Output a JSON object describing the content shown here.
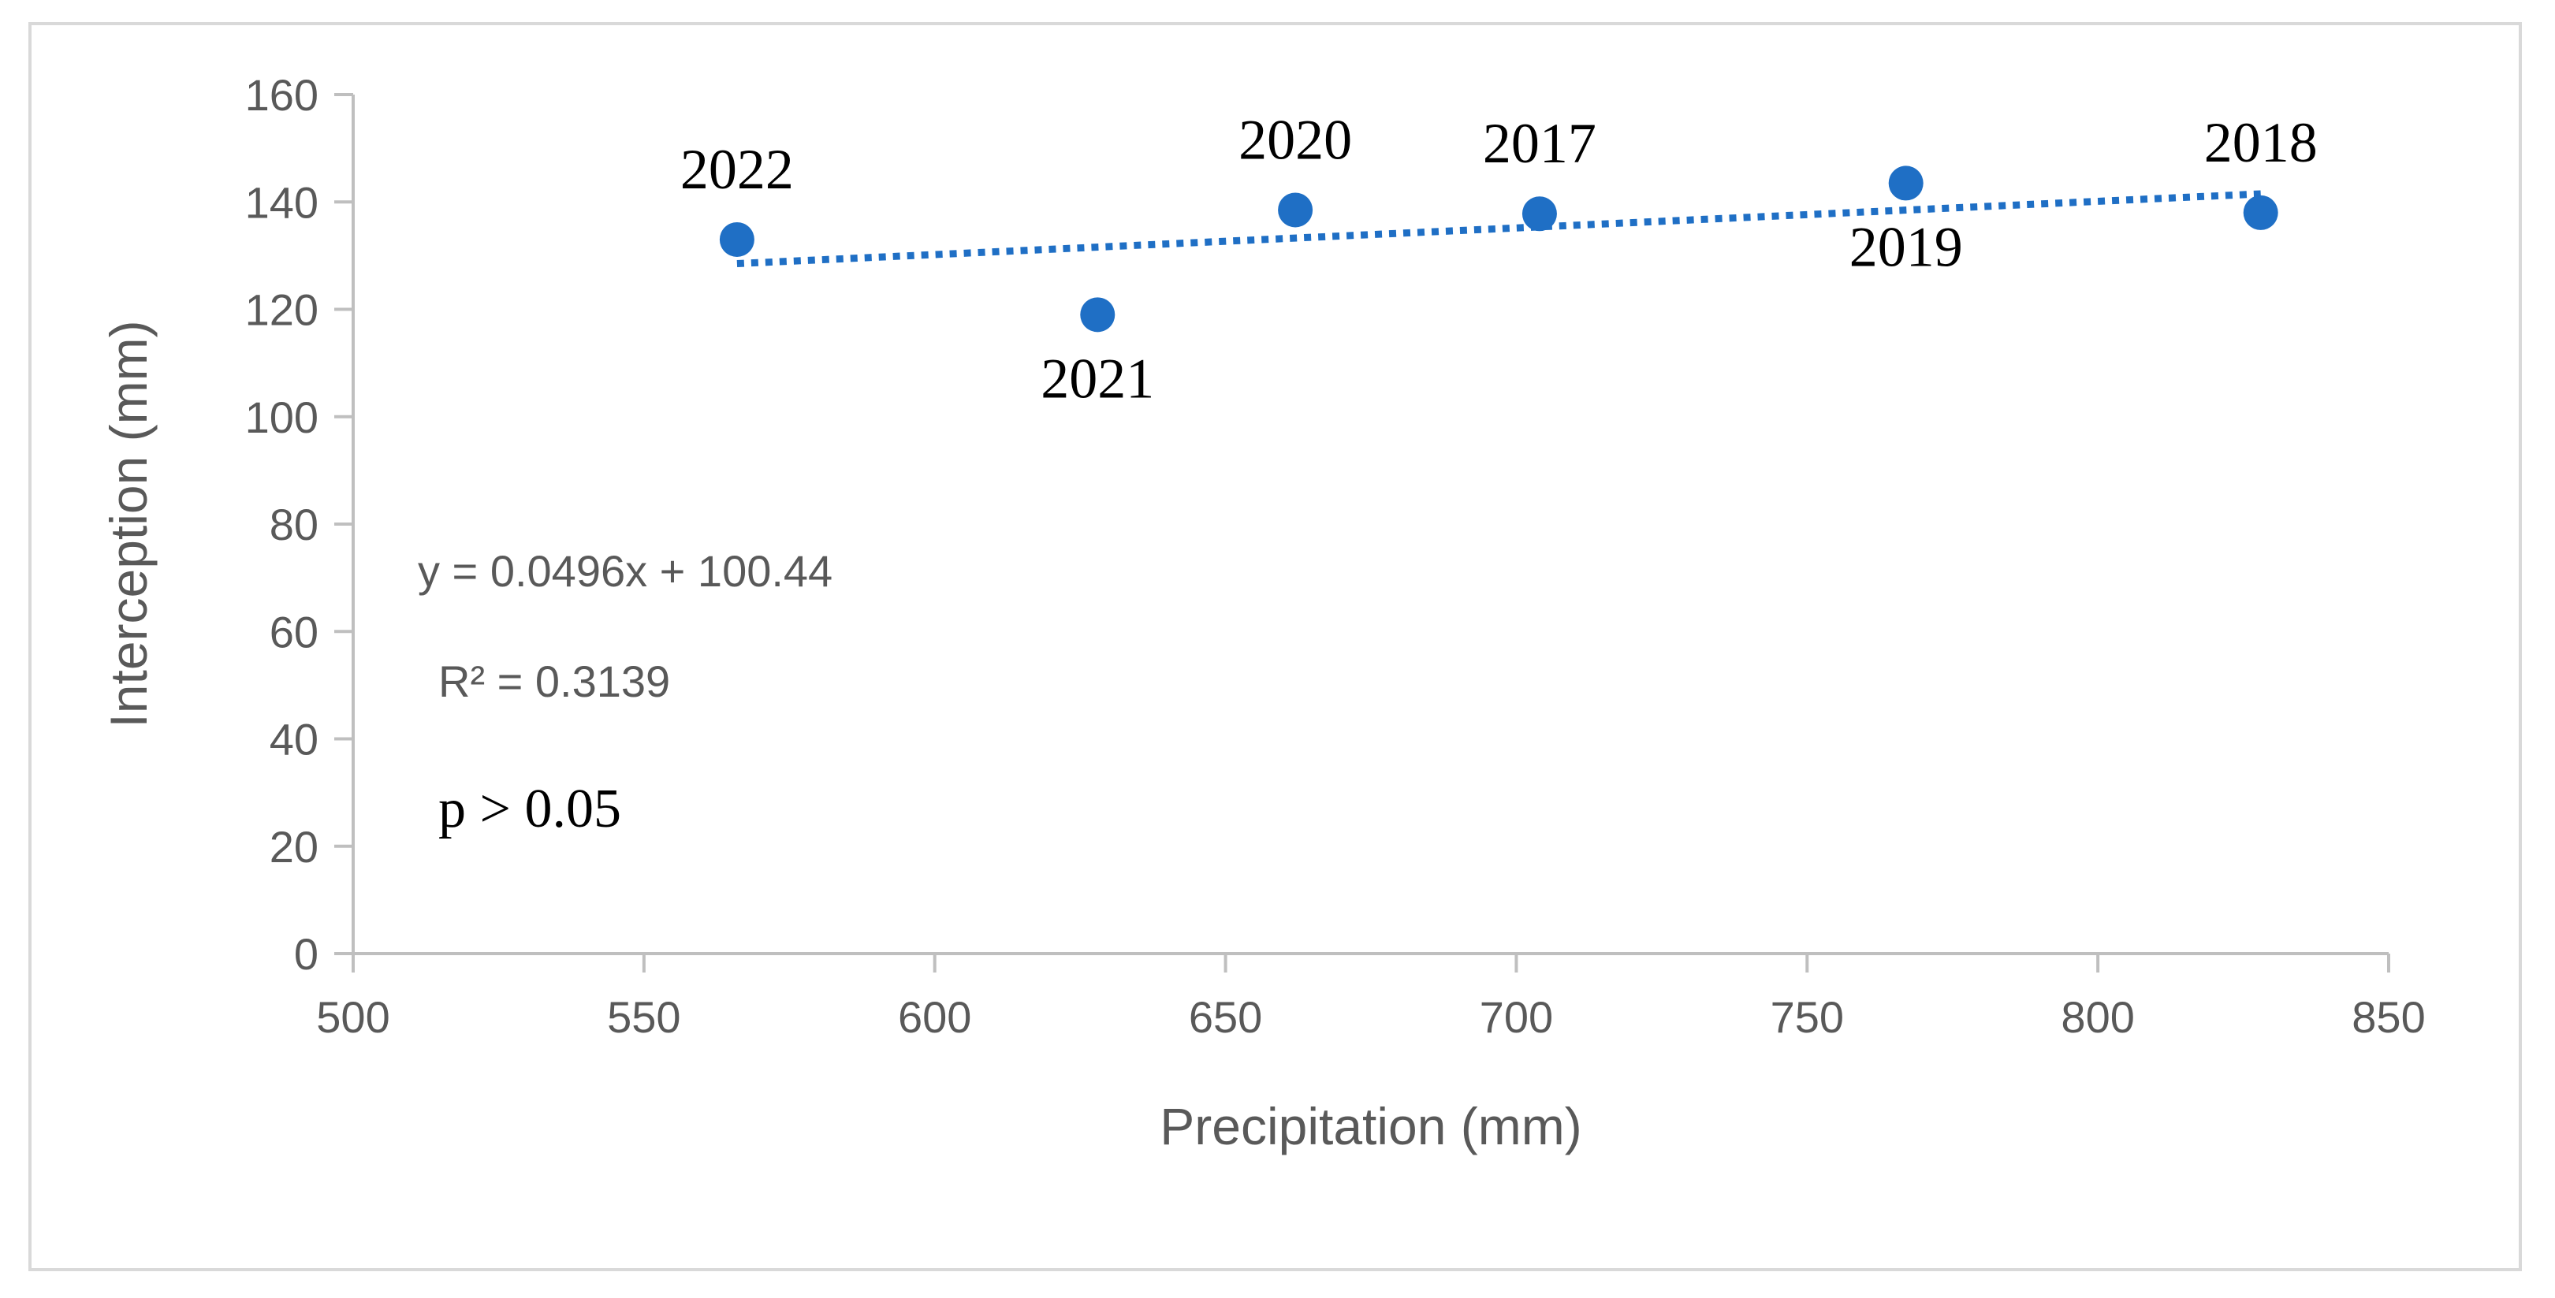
{
  "chart_data": {
    "type": "scatter",
    "xlabel": "Precipitation (mm)",
    "ylabel": "Interception (mm)",
    "xlim": [
      500,
      850
    ],
    "ylim": [
      0,
      160
    ],
    "xticks": [
      500,
      550,
      600,
      650,
      700,
      750,
      800,
      850
    ],
    "yticks": [
      0,
      20,
      40,
      60,
      80,
      100,
      120,
      140,
      160
    ],
    "grid": false,
    "marker_color": "#1f6fc5",
    "trendline_color": "#1f6fc5",
    "points": [
      {
        "label": "2022",
        "x": 566,
        "y": 133,
        "label_pos": "above"
      },
      {
        "label": "2021",
        "x": 628,
        "y": 119,
        "label_pos": "below"
      },
      {
        "label": "2020",
        "x": 662,
        "y": 138.5,
        "label_pos": "above"
      },
      {
        "label": "2017",
        "x": 704,
        "y": 137.8,
        "label_pos": "above"
      },
      {
        "label": "2019",
        "x": 767,
        "y": 143.5,
        "label_pos": "below"
      },
      {
        "label": "2018",
        "x": 828,
        "y": 138,
        "label_pos": "above"
      }
    ],
    "trendline": {
      "type": "linear",
      "style": "dotted",
      "slope": 0.0496,
      "intercept": 100.44,
      "x_range": [
        566,
        828
      ]
    },
    "annotations": {
      "equation": "y = 0.0496x + 100.44",
      "r_squared": "R² = 0.3139",
      "p_value": "p > 0.05"
    }
  }
}
